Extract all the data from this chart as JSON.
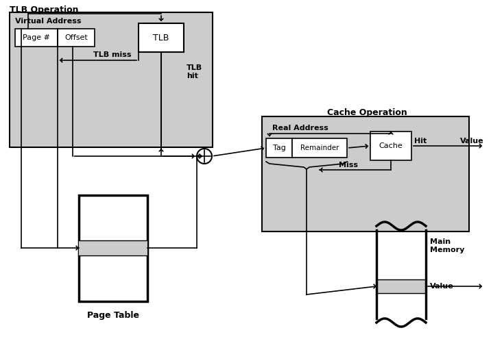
{
  "bg_color": "#ffffff",
  "gray_fill": "#cccccc",
  "white": "#ffffff",
  "black": "#000000",
  "figsize": [
    7.16,
    5.11
  ],
  "dpi": 100,
  "title_tlb": "TLB Operation",
  "title_cache": "Cache Operation",
  "label_va": "Virtual Address",
  "label_ra": "Real Address",
  "label_page": "Page #",
  "label_offset": "Offset",
  "label_tlb": "TLB",
  "label_tag": "Tag",
  "label_remainder": "Remainder",
  "label_cache": "Cache",
  "label_tlb_miss": "TLB miss",
  "label_tlb_hit": "TLB\nhit",
  "label_hit": "Hit",
  "label_miss": "Miss",
  "label_value1": "Value",
  "label_value2": "Value",
  "label_page_table": "Page Table",
  "label_main_memory": "Main\nMemory"
}
